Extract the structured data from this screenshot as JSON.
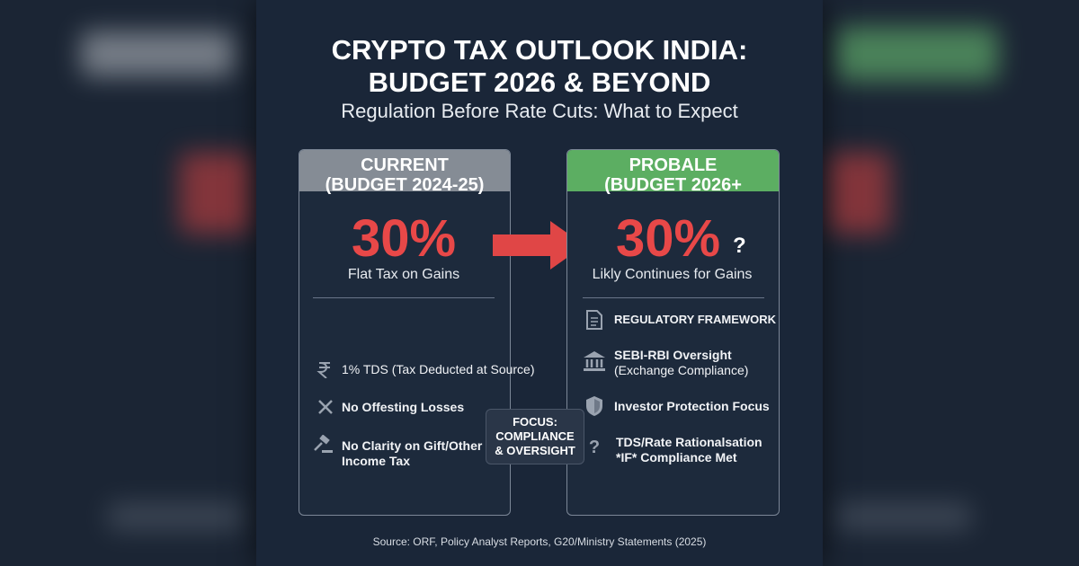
{
  "header": {
    "title_lines": [
      "CRYPTO TAX OUTLOOK INDIA:",
      "BUDGET 2026 & BEYOND"
    ],
    "subtitle": "Regulation Before Rate Cuts: What to Expect"
  },
  "current": {
    "heading": "CURRENT",
    "period": "(BUDGET 2024-25)",
    "rate": "30%",
    "rate_caption": "Flat Tax on Gains",
    "items": [
      [
        "1% TDS (Tax Deducted at Source)"
      ],
      [
        "No Offesting Losses"
      ],
      [
        "No Clarity on Gift/Other",
        "Income Tax"
      ]
    ]
  },
  "probable": {
    "heading": "PROBALE",
    "period": "(BUDGET 2026+",
    "rate": "30%",
    "rate_mark": "?",
    "rate_caption": "Likly Continues for Gains",
    "items": [
      [
        "REGULATORY FRAMEWORK"
      ],
      [
        "SEBI-RBI Oversight",
        "(Exchange Compliance)"
      ],
      [
        "Investor Protection Focus"
      ],
      [
        "TDS/Rate Rationalsation",
        "*IF* Compliance Met"
      ]
    ]
  },
  "focus": {
    "lines": [
      "FOCUS:",
      "COMPLIANCE",
      "& OVERSIGHT"
    ]
  },
  "source": "Source: ORF, Policy Analyst Reports, G20/Ministry Statements (2025)"
}
